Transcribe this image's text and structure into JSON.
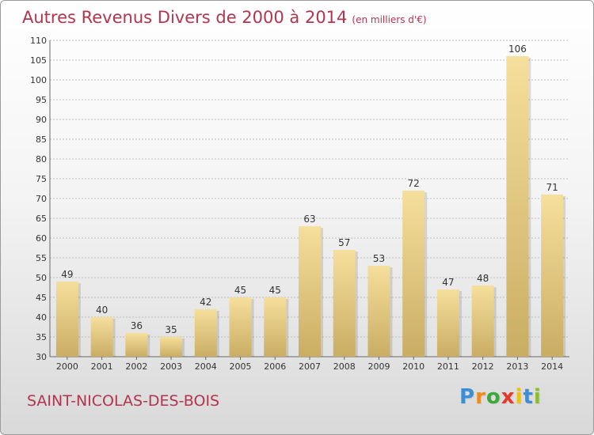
{
  "chart_data": {
    "type": "bar",
    "title": "Autres Revenus Divers de 2000 à 2014",
    "subtitle": "(en milliers d'€)",
    "categories": [
      "2000",
      "2001",
      "2002",
      "2003",
      "2004",
      "2005",
      "2006",
      "2007",
      "2008",
      "2009",
      "2010",
      "2011",
      "2012",
      "2013",
      "2014"
    ],
    "values": [
      49,
      40,
      36,
      35,
      42,
      45,
      45,
      63,
      57,
      53,
      72,
      47,
      48,
      106,
      71
    ],
    "ylim": [
      30,
      110
    ],
    "yticks": [
      30,
      35,
      40,
      45,
      50,
      55,
      60,
      65,
      70,
      75,
      80,
      85,
      90,
      95,
      100,
      105,
      110
    ],
    "grid": true,
    "colors": {
      "bar_top": "#f6df9c",
      "bar_bottom": "#c9ad63",
      "title": "#b3344f",
      "grid": "#bdbdbd"
    }
  },
  "footer": {
    "town": "SAINT-NICOLAS-DES-BOIS",
    "logo_letters": [
      "P",
      "r",
      "o",
      "x",
      "i",
      "t",
      "i"
    ],
    "logo_colors": [
      "#3b8fd6",
      "#f08a1c",
      "#3aa83a",
      "#e33b2b",
      "#f2c200",
      "#3b8fd6",
      "#8bbd2f"
    ]
  }
}
